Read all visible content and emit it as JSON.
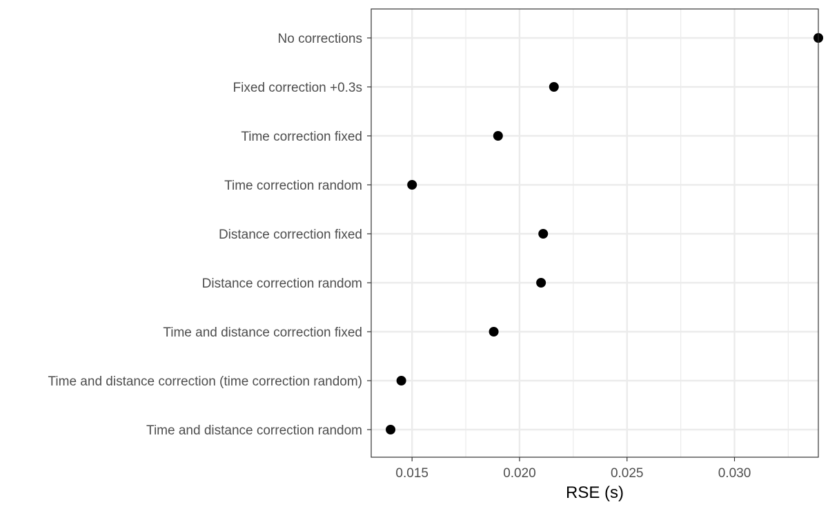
{
  "chart_data": {
    "type": "scatter",
    "title": "",
    "xlabel": "RSE (s)",
    "ylabel": "",
    "xlim": [
      0.0131,
      0.0339
    ],
    "xticks": [
      "0.015",
      "0.020",
      "0.025",
      "0.030"
    ],
    "xtick_values": [
      0.015,
      0.02,
      0.025,
      0.03
    ],
    "x_minor_values": [
      0.0175,
      0.0225,
      0.0275,
      0.0325
    ],
    "grid": true,
    "legend": "none",
    "categories": [
      "No corrections",
      "Fixed correction +0.3s",
      "Time correction fixed",
      "Time correction random",
      "Distance correction fixed",
      "Distance correction random",
      "Time and distance correction fixed",
      "Time and distance correction (time correction random)",
      "Time and distance correction random"
    ],
    "values": [
      0.0339,
      0.0216,
      0.019,
      0.015,
      0.0211,
      0.021,
      0.0188,
      0.0145,
      0.014
    ],
    "point_color": "#000000",
    "panel_border_color": "#333333",
    "grid_color": "#ebebeb"
  }
}
